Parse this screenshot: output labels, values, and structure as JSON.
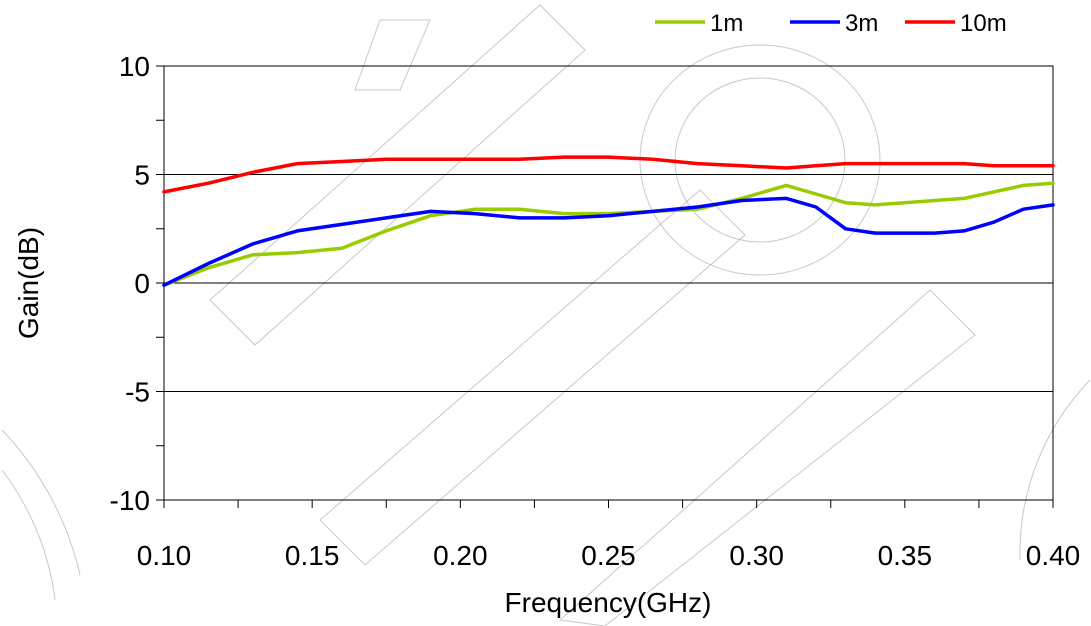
{
  "chart_data": {
    "type": "line",
    "xlabel": "Frequency(GHz)",
    "ylabel": "Gain(dB)",
    "xlim": [
      0.1,
      0.4
    ],
    "ylim": [
      -10,
      10
    ],
    "x_ticks": [
      "0.10",
      "0.15",
      "0.20",
      "0.25",
      "0.30",
      "0.35",
      "0.40"
    ],
    "y_ticks": [
      "10",
      "5",
      "0",
      "-5",
      "-10"
    ],
    "grid": "horizontal",
    "legend_position": "top-right",
    "x": [
      0.1,
      0.115,
      0.13,
      0.145,
      0.16,
      0.175,
      0.19,
      0.205,
      0.22,
      0.235,
      0.25,
      0.265,
      0.28,
      0.295,
      0.31,
      0.32,
      0.33,
      0.34,
      0.35,
      0.36,
      0.37,
      0.38,
      0.39,
      0.4
    ],
    "series": [
      {
        "name": "1m",
        "color": "#99CC00",
        "values": [
          -0.1,
          0.7,
          1.3,
          1.4,
          1.6,
          2.4,
          3.1,
          3.4,
          3.4,
          3.2,
          3.2,
          3.3,
          3.4,
          3.9,
          4.5,
          4.1,
          3.7,
          3.6,
          3.7,
          3.8,
          3.9,
          4.2,
          4.5,
          4.6
        ]
      },
      {
        "name": "3m",
        "color": "#0000FF",
        "values": [
          -0.1,
          0.9,
          1.8,
          2.4,
          2.7,
          3.0,
          3.3,
          3.2,
          3.0,
          3.0,
          3.1,
          3.3,
          3.5,
          3.8,
          3.9,
          3.5,
          2.5,
          2.3,
          2.3,
          2.3,
          2.4,
          2.8,
          3.4,
          3.6
        ]
      },
      {
        "name": "10m",
        "color": "#FF0000",
        "values": [
          4.2,
          4.6,
          5.1,
          5.5,
          5.6,
          5.7,
          5.7,
          5.7,
          5.7,
          5.8,
          5.8,
          5.7,
          5.5,
          5.4,
          5.3,
          5.4,
          5.5,
          5.5,
          5.5,
          5.5,
          5.5,
          5.4,
          5.4,
          5.4
        ]
      }
    ]
  }
}
